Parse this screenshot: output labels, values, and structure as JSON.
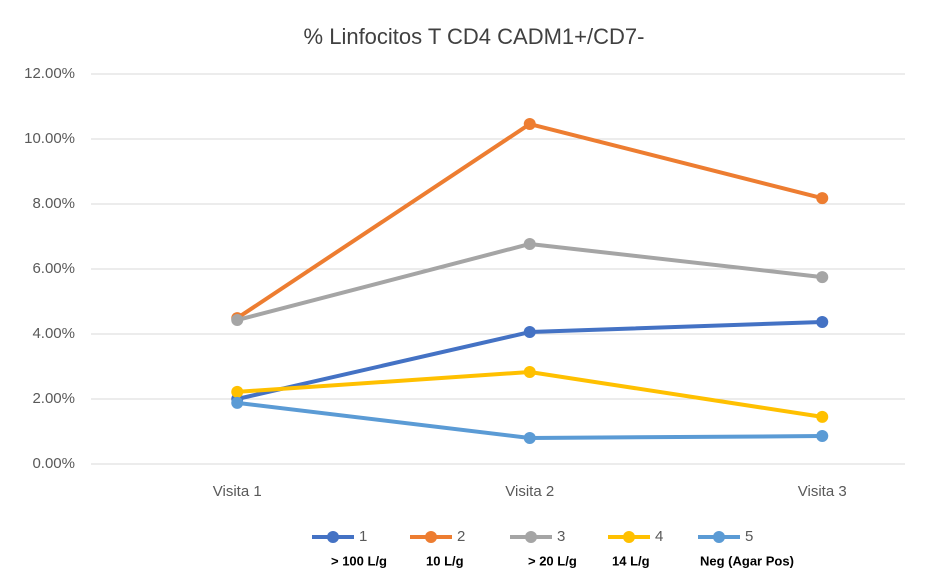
{
  "chart_data": {
    "type": "line",
    "title": "% Linfocitos T CD4 CADM1+/CD7-",
    "categories": [
      "Visita 1",
      "Visita 2",
      "Visita 3"
    ],
    "series": [
      {
        "name": "1",
        "color": "#4472c4",
        "values": [
          2.0,
          4.06,
          4.37
        ]
      },
      {
        "name": "2",
        "color": "#ed7d31",
        "values": [
          4.49,
          10.46,
          8.18
        ]
      },
      {
        "name": "3",
        "color": "#a5a5a5",
        "values": [
          4.43,
          6.77,
          5.75
        ]
      },
      {
        "name": "4",
        "color": "#ffc000",
        "values": [
          2.22,
          2.83,
          1.45
        ]
      },
      {
        "name": "5",
        "color": "#5b9bd5",
        "values": [
          1.88,
          0.8,
          0.86
        ]
      }
    ],
    "annotations": [
      "> 100 L/g",
      "10 L/g",
      "> 20 L/g",
      "14 L/g",
      "Neg (Agar Pos)"
    ],
    "ylim": [
      0,
      12
    ],
    "yticks": [
      {
        "value": 0,
        "label": "0.00%"
      },
      {
        "value": 2,
        "label": "2.00%"
      },
      {
        "value": 4,
        "label": "4.00%"
      },
      {
        "value": 6,
        "label": "6.00%"
      },
      {
        "value": 8,
        "label": "8.00%"
      },
      {
        "value": 10,
        "label": "10.00%"
      },
      {
        "value": 12,
        "label": "12.00%"
      }
    ],
    "grid": true,
    "legend": "bottom"
  }
}
